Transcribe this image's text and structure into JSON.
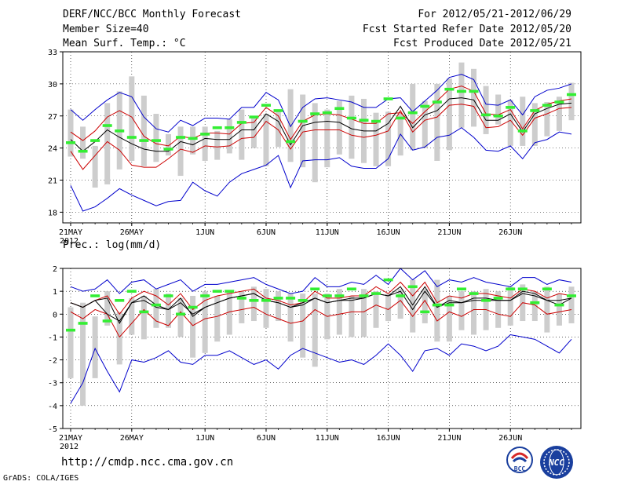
{
  "header": {
    "left1": "DERF/NCC/BCC Monthly Forecast",
    "left2": "Member Size=40",
    "left3": "Mean Surf. Temp.: °C",
    "right1": "For 2012/05/21-2012/06/29",
    "right2": "Fcst Started Refer Date 2012/05/20",
    "right3": "Fcst Produced Date 2012/05/21"
  },
  "footer": {
    "url": "http://cmdp.ncc.cma.gov.cn",
    "credit": "GrADS: COLA/IGES",
    "logo1_text": "BCC",
    "logo2_text": "NCC"
  },
  "colors": {
    "envelope": "#0000cc",
    "spread": "#cc0000",
    "mean": "#000000",
    "box": "#cdcdcd",
    "marker": "#33ee33"
  },
  "chart_data": [
    {
      "type": "line",
      "title": "Mean Surf. Temp.: °C",
      "ylim": [
        17,
        33
      ],
      "yticks": [
        18,
        21,
        24,
        27,
        30,
        33
      ],
      "xlabels": [
        {
          "day": 0,
          "label": "21MAY"
        },
        {
          "day": 5,
          "label": "26MAY"
        },
        {
          "day": 11,
          "label": "1JUN"
        },
        {
          "day": 16,
          "label": "6JUN"
        },
        {
          "day": 21,
          "label": "11JUN"
        },
        {
          "day": 26,
          "label": "16JUN"
        },
        {
          "day": 31,
          "label": "21JUN"
        },
        {
          "day": 36,
          "label": "26JUN"
        }
      ],
      "year_label": "2012",
      "ndays": 40,
      "series": [
        {
          "name": "max",
          "color_key": "envelope",
          "values": [
            27.6,
            26.6,
            27.6,
            28.5,
            29.2,
            28.8,
            26.9,
            25.8,
            25.5,
            26.6,
            26.1,
            26.8,
            26.8,
            26.7,
            27.8,
            27.8,
            29.2,
            28.5,
            26.0,
            27.8,
            28.6,
            28.7,
            28.5,
            28.3,
            27.8,
            27.8,
            28.6,
            28.7,
            27.4,
            28.4,
            29.4,
            30.6,
            30.9,
            30.4,
            28.1,
            28.0,
            28.5,
            27.1,
            28.8,
            29.4,
            29.6,
            30.0
          ]
        },
        {
          "name": "upper",
          "color_key": "spread",
          "values": [
            25.5,
            24.7,
            25.6,
            26.9,
            27.5,
            26.9,
            25.1,
            24.4,
            24.2,
            25.1,
            24.9,
            25.4,
            25.4,
            25.3,
            26.3,
            26.4,
            27.8,
            27.0,
            24.8,
            26.5,
            27.1,
            27.2,
            27.1,
            26.7,
            26.3,
            26.3,
            27.2,
            27.3,
            26.3,
            27.4,
            28.4,
            29.5,
            29.8,
            29.3,
            27.2,
            27.1,
            27.6,
            25.8,
            27.5,
            28.1,
            28.4,
            28.6
          ]
        },
        {
          "name": "mean",
          "color_key": "mean",
          "values": [
            24.8,
            23.7,
            24.6,
            25.7,
            25.0,
            24.4,
            23.9,
            23.7,
            23.7,
            24.6,
            24.3,
            24.9,
            24.8,
            24.8,
            25.7,
            25.7,
            27.2,
            26.5,
            24.3,
            26.1,
            26.4,
            26.5,
            26.4,
            25.8,
            25.6,
            25.6,
            26.3,
            27.9,
            25.9,
            27.1,
            27.5,
            28.6,
            28.7,
            28.5,
            26.6,
            26.6,
            27.2,
            25.5,
            27.2,
            27.7,
            28.1,
            28.2
          ]
        },
        {
          "name": "lower",
          "color_key": "spread",
          "values": [
            23.7,
            22.0,
            23.3,
            24.6,
            23.8,
            22.4,
            22.2,
            22.2,
            23.0,
            23.9,
            23.6,
            24.2,
            24.1,
            24.2,
            24.9,
            25.0,
            26.5,
            25.7,
            23.9,
            25.5,
            25.7,
            25.7,
            25.7,
            25.2,
            25.0,
            25.2,
            25.6,
            27.5,
            25.5,
            26.6,
            26.9,
            28.0,
            28.1,
            27.9,
            25.9,
            26.0,
            26.6,
            25.2,
            26.8,
            27.2,
            27.7,
            27.8
          ]
        },
        {
          "name": "min",
          "color_key": "envelope",
          "values": [
            20.5,
            18.1,
            18.5,
            19.3,
            20.2,
            19.6,
            19.1,
            18.6,
            19.0,
            19.1,
            20.8,
            20.0,
            19.5,
            20.8,
            21.6,
            22.0,
            22.4,
            23.3,
            20.3,
            22.8,
            22.9,
            22.9,
            23.1,
            22.3,
            22.1,
            22.1,
            23.0,
            25.3,
            23.8,
            24.1,
            25.0,
            25.2,
            25.9,
            25.0,
            23.8,
            23.7,
            24.2,
            23.0,
            24.5,
            24.8,
            25.5,
            25.3
          ]
        }
      ],
      "boxes": [
        [
          23.2,
          27.6
        ],
        [
          23.0,
          26.0
        ],
        [
          20.3,
          24.2
        ],
        [
          20.6,
          28.2
        ],
        [
          22.0,
          29.3
        ],
        [
          22.8,
          30.7
        ],
        [
          22.3,
          28.9
        ],
        [
          22.7,
          27.2
        ],
        [
          23.3,
          25.3
        ],
        [
          21.4,
          26.0
        ],
        [
          23.4,
          26.0
        ],
        [
          22.8,
          26.0
        ],
        [
          22.9,
          25.6
        ],
        [
          23.5,
          26.7
        ],
        [
          22.9,
          27.6
        ],
        [
          24.0,
          27.0
        ],
        [
          22.3,
          27.2
        ],
        [
          24.1,
          27.6
        ],
        [
          22.7,
          29.5
        ],
        [
          22.2,
          29.0
        ],
        [
          20.8,
          28.2
        ],
        [
          22.2,
          27.6
        ],
        [
          23.4,
          28.4
        ],
        [
          23.0,
          28.9
        ],
        [
          22.6,
          28.6
        ],
        [
          22.3,
          27.3
        ],
        [
          22.3,
          27.4
        ],
        [
          23.3,
          27.2
        ],
        [
          23.8,
          30.0
        ],
        [
          24.0,
          28.4
        ],
        [
          22.8,
          30.0
        ],
        [
          23.8,
          30.5
        ],
        [
          25.9,
          32.0
        ],
        [
          26.0,
          31.4
        ],
        [
          25.3,
          29.8
        ],
        [
          26.2,
          29.0
        ],
        [
          24.2,
          28.5
        ],
        [
          24.2,
          28.8
        ],
        [
          24.2,
          28.2
        ],
        [
          25.1,
          28.3
        ],
        [
          25.6,
          28.8
        ],
        [
          26.6,
          30.1
        ]
      ],
      "markers": [
        24.5,
        23.7,
        24.7,
        26.1,
        25.6,
        25.0,
        24.7,
        24.7,
        23.9,
        25.0,
        24.9,
        25.3,
        25.9,
        25.9,
        26.4,
        26.9,
        28.0,
        27.5,
        24.6,
        26.5,
        27.2,
        27.3,
        27.7,
        26.8,
        26.6,
        26.5,
        28.6,
        26.8,
        27.3,
        27.9,
        28.3,
        29.5,
        29.3,
        29.3,
        27.1,
        27.0,
        27.8,
        25.6,
        27.5,
        28.0,
        28.3,
        29.0
      ]
    },
    {
      "type": "line",
      "title": "Prec.: log(mm/d)",
      "ylim": [
        -5,
        2
      ],
      "yticks": [
        -5,
        -4,
        -3,
        -2,
        -1,
        0,
        1,
        2
      ],
      "xlabels": [
        {
          "day": 0,
          "label": "21MAY"
        },
        {
          "day": 5,
          "label": "26MAY"
        },
        {
          "day": 11,
          "label": "1JUN"
        },
        {
          "day": 16,
          "label": "6JUN"
        },
        {
          "day": 21,
          "label": "11JUN"
        },
        {
          "day": 26,
          "label": "16JUN"
        },
        {
          "day": 31,
          "label": "21JUN"
        },
        {
          "day": 36,
          "label": "26JUN"
        }
      ],
      "year_label": "2012",
      "ndays": 40,
      "series": [
        {
          "name": "max",
          "color_key": "envelope",
          "values": [
            1.2,
            1.0,
            1.1,
            1.5,
            0.9,
            1.4,
            1.5,
            1.1,
            1.3,
            1.5,
            1.0,
            1.3,
            1.3,
            1.4,
            1.5,
            1.6,
            1.3,
            1.1,
            0.9,
            1.0,
            1.6,
            1.2,
            1.2,
            1.4,
            1.3,
            1.7,
            1.3,
            2.0,
            1.5,
            1.9,
            1.2,
            1.5,
            1.4,
            1.6,
            1.4,
            1.3,
            1.2,
            1.6,
            1.6,
            1.3,
            1.5,
            1.4
          ]
        },
        {
          "name": "upper",
          "color_key": "spread",
          "values": [
            0.5,
            0.3,
            0.6,
            0.8,
            0.0,
            0.7,
            1.0,
            0.8,
            0.4,
            0.9,
            0.2,
            0.6,
            0.8,
            0.9,
            1.0,
            1.1,
            0.7,
            0.6,
            0.4,
            0.5,
            1.0,
            0.7,
            0.7,
            0.8,
            0.8,
            1.2,
            0.9,
            1.4,
            0.8,
            1.4,
            0.5,
            0.8,
            0.7,
            0.9,
            0.9,
            0.8,
            0.7,
            1.1,
            1.0,
            0.7,
            0.9,
            0.8
          ]
        },
        {
          "name": "mean",
          "color_key": "mean",
          "values": [
            0.5,
            0.3,
            0.6,
            0.7,
            -0.4,
            0.5,
            0.8,
            0.4,
            0.2,
            0.7,
            -0.1,
            0.3,
            0.5,
            0.7,
            0.8,
            0.9,
            0.6,
            0.5,
            0.3,
            0.5,
            0.7,
            0.5,
            0.6,
            0.7,
            0.7,
            0.9,
            0.8,
            1.2,
            0.4,
            1.2,
            0.3,
            0.6,
            0.5,
            0.7,
            0.7,
            0.6,
            0.6,
            1.0,
            0.9,
            0.6,
            0.6,
            0.7
          ]
        },
        {
          "name": "lower",
          "color_key": "spread",
          "values": [
            0.1,
            -0.2,
            0.2,
            0.0,
            -1.0,
            -0.4,
            0.2,
            -0.3,
            -0.5,
            0.1,
            -0.5,
            -0.2,
            -0.1,
            0.1,
            0.2,
            0.3,
            0.0,
            -0.2,
            -0.4,
            -0.3,
            0.2,
            -0.1,
            0.0,
            0.1,
            0.1,
            0.4,
            0.2,
            0.6,
            -0.1,
            0.6,
            -0.3,
            0.1,
            -0.1,
            0.2,
            0.2,
            0.0,
            -0.1,
            0.5,
            0.4,
            0.0,
            0.1,
            0.2
          ]
        },
        {
          "name": "min",
          "color_key": "envelope",
          "values": [
            -3.9,
            -3.0,
            -1.5,
            -2.5,
            -3.4,
            -2.0,
            -2.1,
            -1.9,
            -1.6,
            -2.1,
            -2.2,
            -1.8,
            -1.8,
            -1.6,
            -1.9,
            -2.2,
            -2.0,
            -2.4,
            -1.8,
            -1.5,
            -1.7,
            -1.9,
            -2.1,
            -2.0,
            -2.2,
            -1.8,
            -1.3,
            -1.8,
            -2.5,
            -1.6,
            -1.5,
            -1.8,
            -1.3,
            -1.4,
            -1.6,
            -1.4,
            -0.9,
            -1.0,
            -1.1,
            -1.4,
            -1.7,
            -1.1
          ]
        },
        {
          "name": "center",
          "color_key": "mean",
          "values": [
            0.5,
            0.3,
            0.6,
            0.0,
            -0.3,
            0.5,
            0.6,
            0.3,
            0.2,
            0.5,
            0.0,
            0.3,
            0.5,
            0.7,
            0.8,
            0.9,
            0.6,
            0.5,
            0.3,
            0.4,
            0.7,
            0.5,
            0.6,
            0.6,
            0.7,
            0.9,
            0.8,
            1.0,
            0.2,
            1.0,
            0.3,
            0.5,
            0.5,
            0.6,
            0.6,
            0.6,
            0.6,
            0.9,
            0.8,
            0.6,
            0.4,
            0.7
          ]
        }
      ],
      "boxes": [
        [
          -2.8,
          0.3
        ],
        [
          -4.0,
          0.5
        ],
        [
          -2.8,
          -0.1
        ],
        [
          -0.5,
          1.0
        ],
        [
          -2.2,
          0.1
        ],
        [
          -0.9,
          0.7
        ],
        [
          -1.1,
          0.8
        ],
        [
          -0.6,
          1.1
        ],
        [
          -0.6,
          0.9
        ],
        [
          -1.0,
          0.7
        ],
        [
          -1.9,
          0.8
        ],
        [
          -1.7,
          1.0
        ],
        [
          -1.2,
          0.8
        ],
        [
          -0.9,
          1.0
        ],
        [
          -0.4,
          1.0
        ],
        [
          -0.3,
          1.2
        ],
        [
          -0.6,
          1.1
        ],
        [
          -0.3,
          1.0
        ],
        [
          -1.2,
          0.9
        ],
        [
          -1.9,
          0.9
        ],
        [
          -2.3,
          0.9
        ],
        [
          -1.1,
          0.9
        ],
        [
          -0.9,
          1.1
        ],
        [
          -1.0,
          0.8
        ],
        [
          -1.0,
          1.1
        ],
        [
          -0.6,
          1.0
        ],
        [
          -0.3,
          0.9
        ],
        [
          -0.2,
          1.1
        ],
        [
          -0.8,
          1.5
        ],
        [
          -0.4,
          1.1
        ],
        [
          -1.2,
          1.5
        ],
        [
          -1.2,
          0.8
        ],
        [
          -0.7,
          1.0
        ],
        [
          -0.9,
          1.0
        ],
        [
          -0.7,
          1.1
        ],
        [
          -0.6,
          1.0
        ],
        [
          -0.5,
          1.2
        ],
        [
          -0.3,
          1.3
        ],
        [
          -0.3,
          1.0
        ],
        [
          -0.8,
          1.2
        ],
        [
          -0.5,
          0.9
        ],
        [
          -0.4,
          1.2
        ]
      ],
      "markers": [
        -0.7,
        -0.4,
        0.8,
        -0.3,
        0.6,
        1.0,
        0.1,
        0.4,
        0.8,
        0.0,
        0.3,
        0.8,
        1.0,
        1.0,
        0.7,
        0.6,
        0.6,
        0.7,
        0.7,
        0.6,
        1.1,
        0.8,
        0.8,
        1.1,
        0.8,
        0.9,
        1.5,
        0.8,
        1.2,
        0.1,
        0.4,
        0.4,
        1.1,
        0.9,
        0.6,
        0.7,
        1.1,
        1.1,
        0.5,
        1.1,
        0.4,
        0.8
      ]
    }
  ]
}
